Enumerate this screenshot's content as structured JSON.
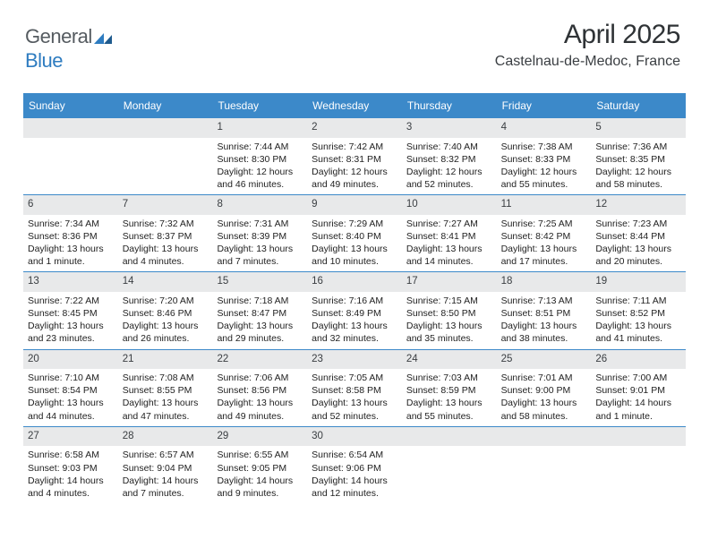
{
  "brand": {
    "part1": "General",
    "part2": "Blue"
  },
  "header": {
    "month_title": "April 2025",
    "location": "Castelnau-de-Medoc, France"
  },
  "colors": {
    "accent": "#3c89c9",
    "daynum_bg": "#e8e9ea",
    "text": "#222222",
    "header_text": "#2f3336"
  },
  "weekdays": [
    "Sunday",
    "Monday",
    "Tuesday",
    "Wednesday",
    "Thursday",
    "Friday",
    "Saturday"
  ],
  "weeks": [
    [
      {
        "blank": true
      },
      {
        "blank": true
      },
      {
        "num": "1",
        "sunrise": "Sunrise: 7:44 AM",
        "sunset": "Sunset: 8:30 PM",
        "daylight1": "Daylight: 12 hours",
        "daylight2": "and 46 minutes."
      },
      {
        "num": "2",
        "sunrise": "Sunrise: 7:42 AM",
        "sunset": "Sunset: 8:31 PM",
        "daylight1": "Daylight: 12 hours",
        "daylight2": "and 49 minutes."
      },
      {
        "num": "3",
        "sunrise": "Sunrise: 7:40 AM",
        "sunset": "Sunset: 8:32 PM",
        "daylight1": "Daylight: 12 hours",
        "daylight2": "and 52 minutes."
      },
      {
        "num": "4",
        "sunrise": "Sunrise: 7:38 AM",
        "sunset": "Sunset: 8:33 PM",
        "daylight1": "Daylight: 12 hours",
        "daylight2": "and 55 minutes."
      },
      {
        "num": "5",
        "sunrise": "Sunrise: 7:36 AM",
        "sunset": "Sunset: 8:35 PM",
        "daylight1": "Daylight: 12 hours",
        "daylight2": "and 58 minutes."
      }
    ],
    [
      {
        "num": "6",
        "sunrise": "Sunrise: 7:34 AM",
        "sunset": "Sunset: 8:36 PM",
        "daylight1": "Daylight: 13 hours",
        "daylight2": "and 1 minute."
      },
      {
        "num": "7",
        "sunrise": "Sunrise: 7:32 AM",
        "sunset": "Sunset: 8:37 PM",
        "daylight1": "Daylight: 13 hours",
        "daylight2": "and 4 minutes."
      },
      {
        "num": "8",
        "sunrise": "Sunrise: 7:31 AM",
        "sunset": "Sunset: 8:39 PM",
        "daylight1": "Daylight: 13 hours",
        "daylight2": "and 7 minutes."
      },
      {
        "num": "9",
        "sunrise": "Sunrise: 7:29 AM",
        "sunset": "Sunset: 8:40 PM",
        "daylight1": "Daylight: 13 hours",
        "daylight2": "and 10 minutes."
      },
      {
        "num": "10",
        "sunrise": "Sunrise: 7:27 AM",
        "sunset": "Sunset: 8:41 PM",
        "daylight1": "Daylight: 13 hours",
        "daylight2": "and 14 minutes."
      },
      {
        "num": "11",
        "sunrise": "Sunrise: 7:25 AM",
        "sunset": "Sunset: 8:42 PM",
        "daylight1": "Daylight: 13 hours",
        "daylight2": "and 17 minutes."
      },
      {
        "num": "12",
        "sunrise": "Sunrise: 7:23 AM",
        "sunset": "Sunset: 8:44 PM",
        "daylight1": "Daylight: 13 hours",
        "daylight2": "and 20 minutes."
      }
    ],
    [
      {
        "num": "13",
        "sunrise": "Sunrise: 7:22 AM",
        "sunset": "Sunset: 8:45 PM",
        "daylight1": "Daylight: 13 hours",
        "daylight2": "and 23 minutes."
      },
      {
        "num": "14",
        "sunrise": "Sunrise: 7:20 AM",
        "sunset": "Sunset: 8:46 PM",
        "daylight1": "Daylight: 13 hours",
        "daylight2": "and 26 minutes."
      },
      {
        "num": "15",
        "sunrise": "Sunrise: 7:18 AM",
        "sunset": "Sunset: 8:47 PM",
        "daylight1": "Daylight: 13 hours",
        "daylight2": "and 29 minutes."
      },
      {
        "num": "16",
        "sunrise": "Sunrise: 7:16 AM",
        "sunset": "Sunset: 8:49 PM",
        "daylight1": "Daylight: 13 hours",
        "daylight2": "and 32 minutes."
      },
      {
        "num": "17",
        "sunrise": "Sunrise: 7:15 AM",
        "sunset": "Sunset: 8:50 PM",
        "daylight1": "Daylight: 13 hours",
        "daylight2": "and 35 minutes."
      },
      {
        "num": "18",
        "sunrise": "Sunrise: 7:13 AM",
        "sunset": "Sunset: 8:51 PM",
        "daylight1": "Daylight: 13 hours",
        "daylight2": "and 38 minutes."
      },
      {
        "num": "19",
        "sunrise": "Sunrise: 7:11 AM",
        "sunset": "Sunset: 8:52 PM",
        "daylight1": "Daylight: 13 hours",
        "daylight2": "and 41 minutes."
      }
    ],
    [
      {
        "num": "20",
        "sunrise": "Sunrise: 7:10 AM",
        "sunset": "Sunset: 8:54 PM",
        "daylight1": "Daylight: 13 hours",
        "daylight2": "and 44 minutes."
      },
      {
        "num": "21",
        "sunrise": "Sunrise: 7:08 AM",
        "sunset": "Sunset: 8:55 PM",
        "daylight1": "Daylight: 13 hours",
        "daylight2": "and 47 minutes."
      },
      {
        "num": "22",
        "sunrise": "Sunrise: 7:06 AM",
        "sunset": "Sunset: 8:56 PM",
        "daylight1": "Daylight: 13 hours",
        "daylight2": "and 49 minutes."
      },
      {
        "num": "23",
        "sunrise": "Sunrise: 7:05 AM",
        "sunset": "Sunset: 8:58 PM",
        "daylight1": "Daylight: 13 hours",
        "daylight2": "and 52 minutes."
      },
      {
        "num": "24",
        "sunrise": "Sunrise: 7:03 AM",
        "sunset": "Sunset: 8:59 PM",
        "daylight1": "Daylight: 13 hours",
        "daylight2": "and 55 minutes."
      },
      {
        "num": "25",
        "sunrise": "Sunrise: 7:01 AM",
        "sunset": "Sunset: 9:00 PM",
        "daylight1": "Daylight: 13 hours",
        "daylight2": "and 58 minutes."
      },
      {
        "num": "26",
        "sunrise": "Sunrise: 7:00 AM",
        "sunset": "Sunset: 9:01 PM",
        "daylight1": "Daylight: 14 hours",
        "daylight2": "and 1 minute."
      }
    ],
    [
      {
        "num": "27",
        "sunrise": "Sunrise: 6:58 AM",
        "sunset": "Sunset: 9:03 PM",
        "daylight1": "Daylight: 14 hours",
        "daylight2": "and 4 minutes."
      },
      {
        "num": "28",
        "sunrise": "Sunrise: 6:57 AM",
        "sunset": "Sunset: 9:04 PM",
        "daylight1": "Daylight: 14 hours",
        "daylight2": "and 7 minutes."
      },
      {
        "num": "29",
        "sunrise": "Sunrise: 6:55 AM",
        "sunset": "Sunset: 9:05 PM",
        "daylight1": "Daylight: 14 hours",
        "daylight2": "and 9 minutes."
      },
      {
        "num": "30",
        "sunrise": "Sunrise: 6:54 AM",
        "sunset": "Sunset: 9:06 PM",
        "daylight1": "Daylight: 14 hours",
        "daylight2": "and 12 minutes."
      },
      {
        "blank": true
      },
      {
        "blank": true
      },
      {
        "blank": true
      }
    ]
  ]
}
